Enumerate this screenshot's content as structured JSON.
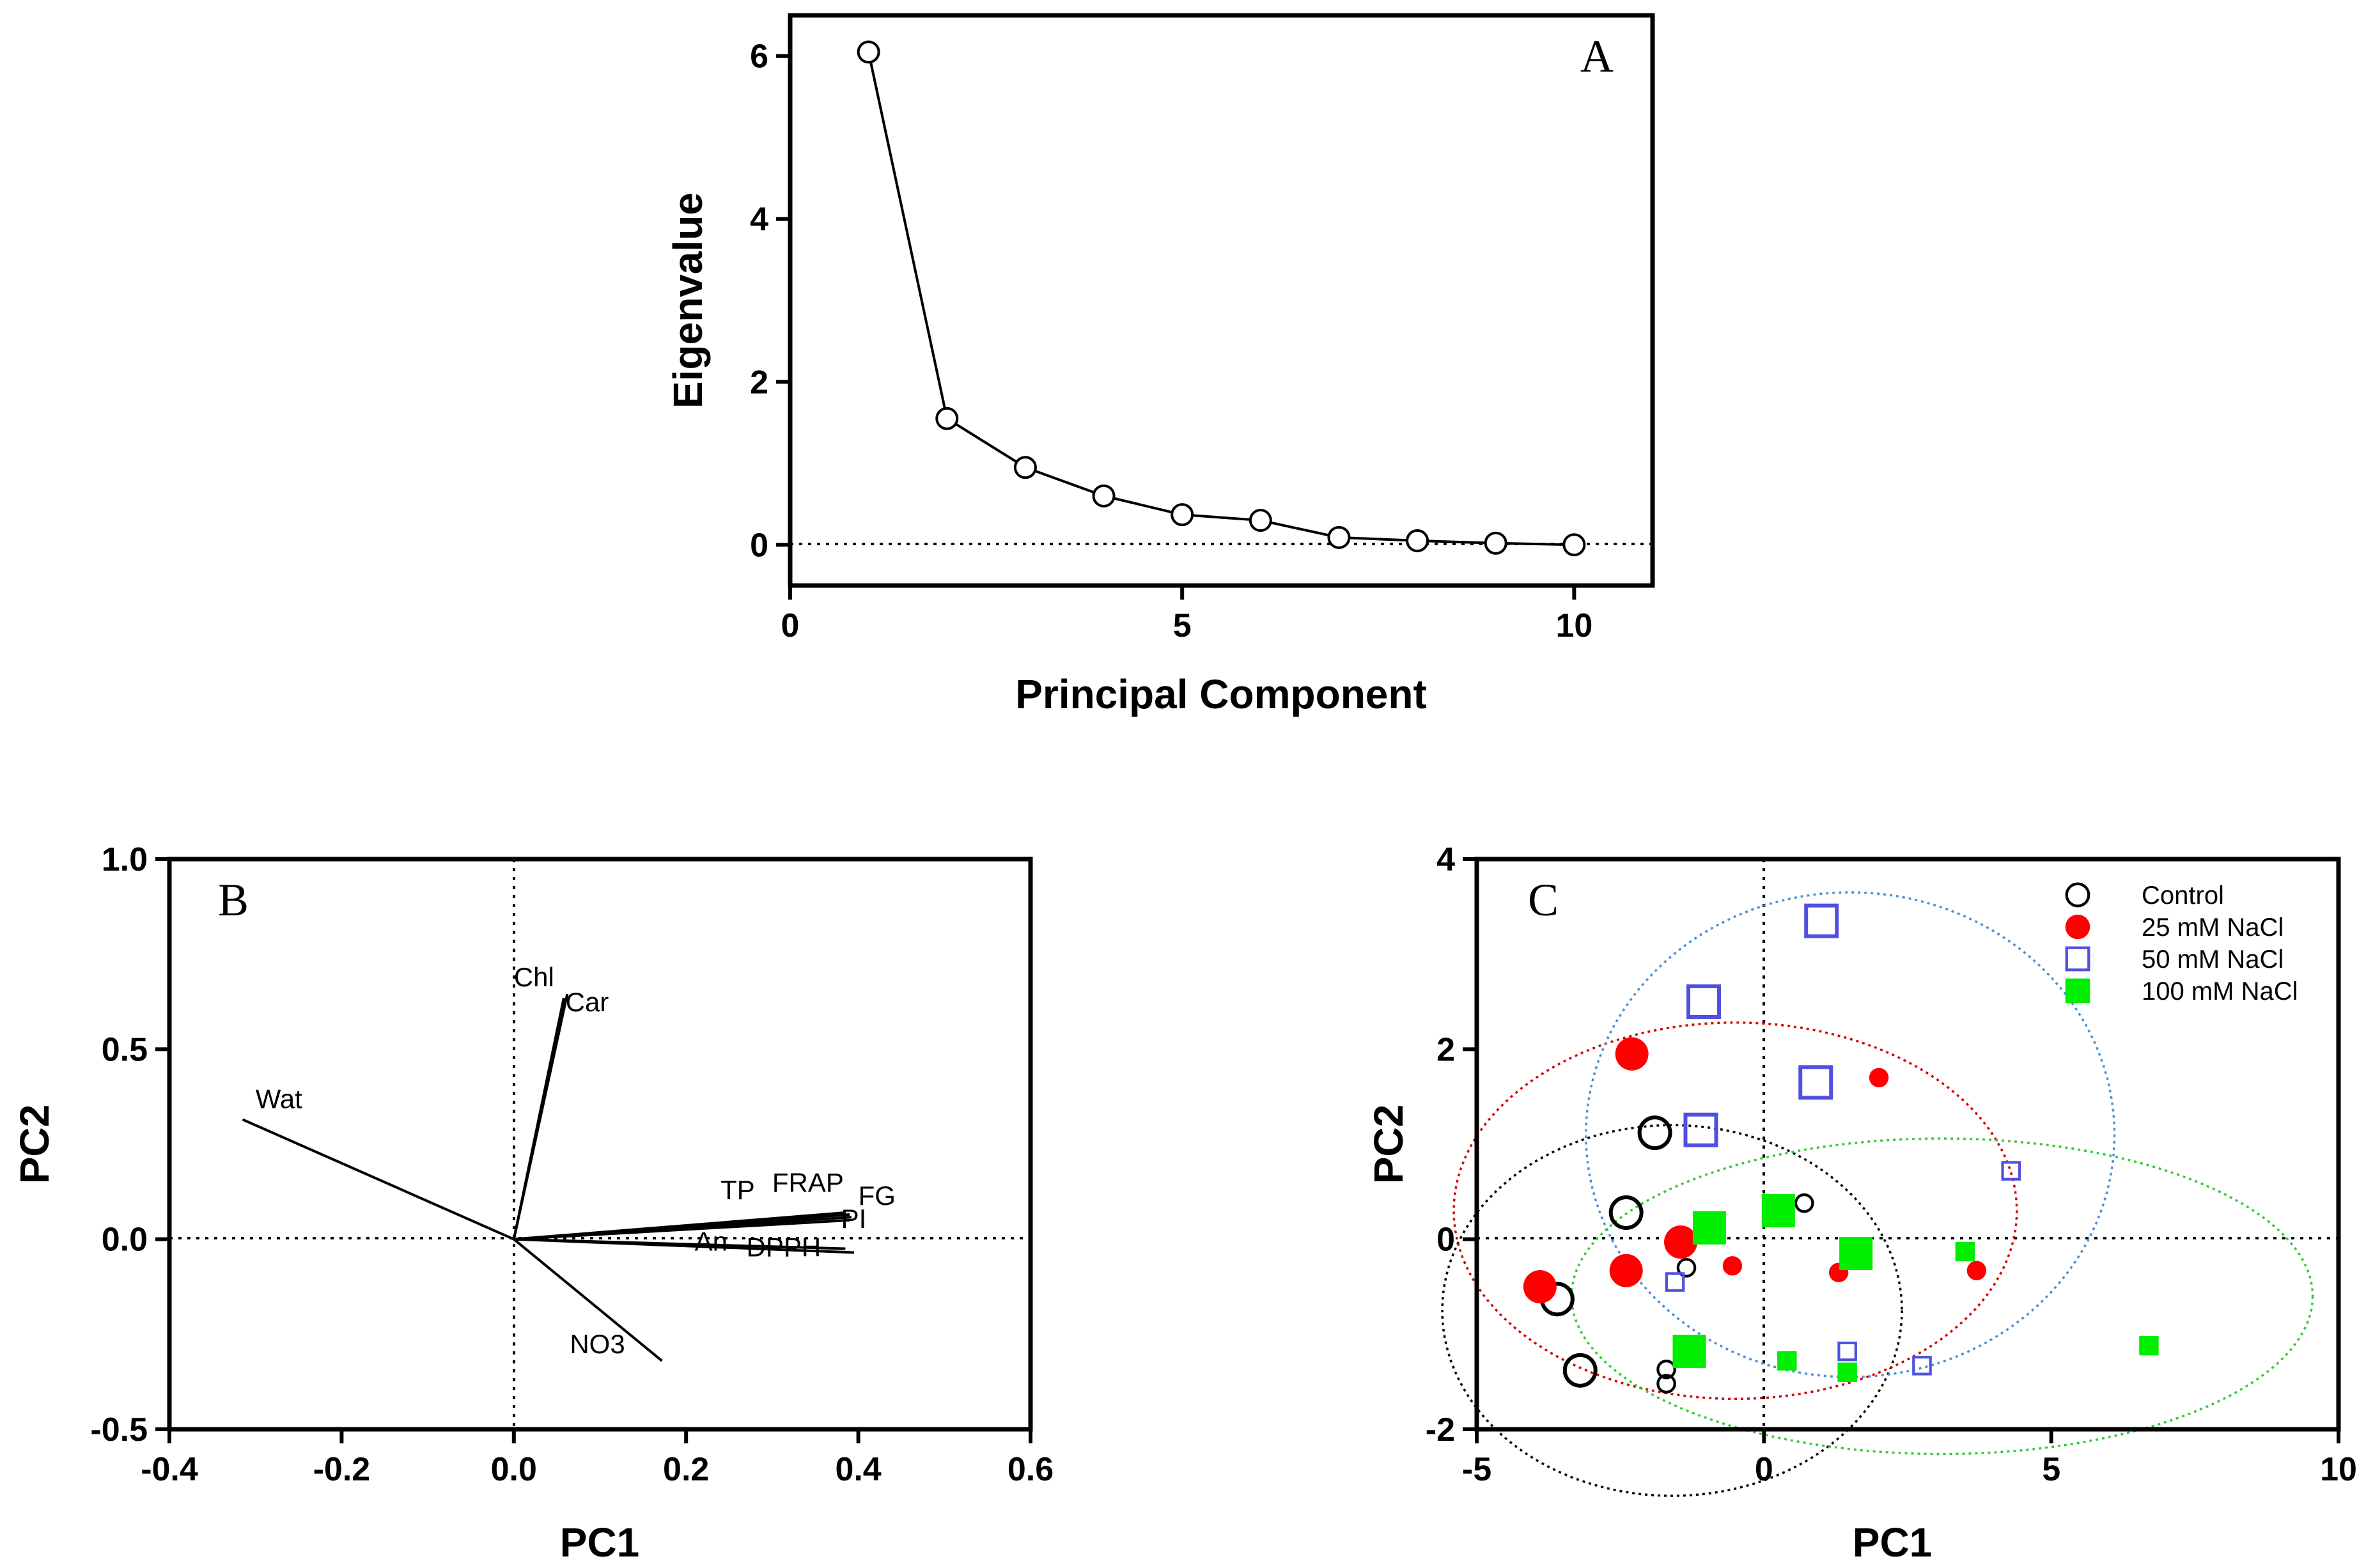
{
  "chart_data": [
    {
      "type": "line",
      "panel_label": "A",
      "xlabel": "Principal Component",
      "ylabel": "Eigenvalue",
      "xlim": [
        0,
        11
      ],
      "ylim": [
        -0.5,
        6.5
      ],
      "xticks": [
        0,
        5,
        10
      ],
      "yticks": [
        0,
        2,
        4,
        6
      ],
      "reference_lines": {
        "y0": "dotted"
      },
      "marker": "open-circle",
      "x": [
        1,
        2,
        3,
        4,
        5,
        6,
        7,
        8,
        9,
        10
      ],
      "y": [
        6.05,
        1.55,
        0.95,
        0.6,
        0.37,
        0.3,
        0.09,
        0.05,
        0.02,
        0.0
      ]
    },
    {
      "type": "biplot-loadings",
      "panel_label": "B",
      "xlabel": "PC1",
      "ylabel": "PC2",
      "xlim": [
        -0.4,
        0.6
      ],
      "ylim": [
        -0.5,
        1.0
      ],
      "xticks": [
        "-0.4",
        "-0.2",
        "0.0",
        "0.2",
        "0.4",
        "0.6"
      ],
      "yticks": [
        "-0.5",
        "0.0",
        "0.5",
        "1.0"
      ],
      "reference_lines": {
        "x0": "dotted",
        "y0": "dotted"
      },
      "vectors": [
        {
          "name": "Chl",
          "x": 0.058,
          "y": 0.635,
          "label_x": 0.0,
          "label_y": 0.665
        },
        {
          "name": "Car",
          "x": 0.062,
          "y": 0.645,
          "label_x": 0.06,
          "label_y": 0.6
        },
        {
          "name": "Wat",
          "x": -0.315,
          "y": 0.315,
          "label_x": -0.3,
          "label_y": 0.345
        },
        {
          "name": "TP",
          "x": 0.385,
          "y": 0.07,
          "label_x": 0.24,
          "label_y": 0.105
        },
        {
          "name": "FRAP",
          "x": 0.39,
          "y": 0.065,
          "label_x": 0.3,
          "label_y": 0.125
        },
        {
          "name": "FG",
          "x": 0.392,
          "y": 0.058,
          "label_x": 0.4,
          "label_y": 0.09
        },
        {
          "name": "PI",
          "x": 0.39,
          "y": 0.05,
          "label_x": 0.38,
          "label_y": 0.03
        },
        {
          "name": "An",
          "x": 0.385,
          "y": -0.025,
          "label_x": 0.21,
          "label_y": -0.03
        },
        {
          "name": "DPPH",
          "x": 0.395,
          "y": -0.035,
          "label_x": 0.27,
          "label_y": -0.045
        },
        {
          "name": "NO3",
          "x": 0.172,
          "y": -0.32,
          "label_x": 0.065,
          "label_y": -0.3
        }
      ]
    },
    {
      "type": "scatter",
      "panel_label": "C",
      "xlabel": "PC1",
      "ylabel": "PC2",
      "xlim": [
        -5,
        10
      ],
      "ylim": [
        -2,
        4
      ],
      "xticks": [
        "-5",
        "0",
        "5",
        "10"
      ],
      "yticks": [
        "-2",
        "0",
        "2",
        "4"
      ],
      "reference_lines": {
        "x0": "dotted",
        "y0": "dotted"
      },
      "legend_position": "top-right",
      "series": [
        {
          "name": "Control",
          "color": "#000000",
          "marker": "open-circle",
          "points": [
            [
              -2.4,
              0.28,
              1.0
            ],
            [
              -1.9,
              1.12,
              1.0
            ],
            [
              -3.6,
              -0.63,
              1.0
            ],
            [
              -3.2,
              -1.38,
              1.0
            ],
            [
              -1.35,
              -0.3,
              0.55
            ],
            [
              -1.7,
              -1.37,
              0.55
            ],
            [
              -1.7,
              -1.52,
              0.55
            ],
            [
              0.7,
              0.38,
              0.55
            ]
          ],
          "ellipse": {
            "cx": -1.6,
            "cy": -0.75,
            "rx": 4.0,
            "ry": 1.95,
            "color": "#000000"
          }
        },
        {
          "name": "25 mM NaCl",
          "color": "#ff0000",
          "marker": "filled-circle",
          "points": [
            [
              -2.3,
              1.95,
              1.0
            ],
            [
              -2.4,
              -0.33,
              1.0
            ],
            [
              -3.9,
              -0.5,
              1.0
            ],
            [
              -1.45,
              -0.03,
              1.0
            ],
            [
              2.0,
              1.7,
              0.55
            ],
            [
              -0.55,
              -0.28,
              0.55
            ],
            [
              1.3,
              -0.35,
              0.55
            ],
            [
              3.7,
              -0.33,
              0.55
            ]
          ],
          "ellipse": {
            "cx": -0.5,
            "cy": 0.3,
            "rx": 4.9,
            "ry": 1.98,
            "color": "#d40000"
          }
        },
        {
          "name": "50 mM NaCl",
          "color": "#5050e0",
          "marker": "open-square",
          "points": [
            [
              1.0,
              3.35,
              1.0
            ],
            [
              -1.05,
              2.5,
              1.0
            ],
            [
              0.9,
              1.65,
              1.0
            ],
            [
              -1.1,
              1.15,
              1.0
            ],
            [
              4.3,
              0.72,
              0.55
            ],
            [
              -1.55,
              -0.45,
              0.55
            ],
            [
              1.45,
              -1.18,
              0.55
            ],
            [
              2.75,
              -1.33,
              0.55
            ]
          ],
          "ellipse": {
            "cx": 1.5,
            "cy": 1.1,
            "rx": 4.6,
            "ry": 2.55,
            "color": "#4a90d9"
          }
        },
        {
          "name": "100 mM NaCl",
          "color": "#00ee00",
          "marker": "filled-square",
          "points": [
            [
              0.25,
              0.3,
              1.0
            ],
            [
              -0.95,
              0.12,
              1.0
            ],
            [
              1.6,
              -0.15,
              1.0
            ],
            [
              -1.3,
              -1.18,
              1.0
            ],
            [
              0.4,
              -1.28,
              0.55
            ],
            [
              1.45,
              -1.4,
              0.55
            ],
            [
              3.5,
              -0.13,
              0.55
            ],
            [
              6.7,
              -1.12,
              0.55
            ]
          ],
          "ellipse": {
            "cx": 3.1,
            "cy": -0.6,
            "rx": 6.45,
            "ry": 1.66,
            "color": "#33cc33"
          }
        }
      ]
    }
  ]
}
